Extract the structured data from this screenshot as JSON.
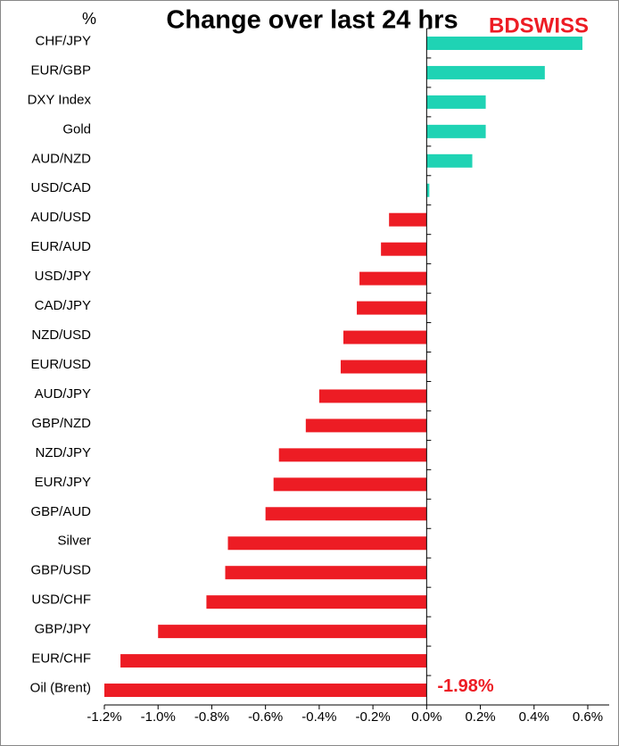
{
  "chart_data": {
    "type": "hbar",
    "title": "Change over last 24 hrs",
    "unit_label": "%",
    "logo": "BDSWISS",
    "categories": [
      "CHF/JPY",
      "EUR/GBP",
      "DXY Index",
      "Gold",
      "AUD/NZD",
      "USD/CAD",
      "AUD/USD",
      "EUR/AUD",
      "USD/JPY",
      "CAD/JPY",
      "NZD/USD",
      "EUR/USD",
      "AUD/JPY",
      "GBP/NZD",
      "NZD/JPY",
      "EUR/JPY",
      "GBP/AUD",
      "Silver",
      "GBP/USD",
      "USD/CHF",
      "GBP/JPY",
      "EUR/CHF",
      "Oil (Brent)"
    ],
    "values": [
      0.58,
      0.44,
      0.22,
      0.22,
      0.17,
      0.01,
      -0.14,
      -0.17,
      -0.25,
      -0.26,
      -0.31,
      -0.32,
      -0.4,
      -0.45,
      -0.55,
      -0.57,
      -0.6,
      -0.74,
      -0.75,
      -0.82,
      -1.0,
      -1.14,
      -1.98
    ],
    "value_labels": [
      null,
      null,
      null,
      null,
      null,
      null,
      null,
      null,
      null,
      null,
      null,
      null,
      null,
      null,
      null,
      null,
      null,
      null,
      null,
      null,
      null,
      null,
      "-1.98%"
    ],
    "positive_color": "#1fd3b4",
    "negative_color": "#ed1c24",
    "xlim": [
      -1.2,
      0.6
    ],
    "xticks": [
      {
        "value": -1.2,
        "label": "-1.2%"
      },
      {
        "value": -1.0,
        "label": "-1.0%"
      },
      {
        "value": -0.8,
        "label": "-0.8%"
      },
      {
        "value": -0.6,
        "label": "-0.6%"
      },
      {
        "value": -0.4,
        "label": "-0.4%"
      },
      {
        "value": -0.2,
        "label": "-0.2%"
      },
      {
        "value": 0,
        "label": "0.0%"
      },
      {
        "value": 0.2,
        "label": "0.2%"
      },
      {
        "value": 0.4,
        "label": "0.4%"
      },
      {
        "value": 0.6,
        "label": "0.6%"
      }
    ]
  }
}
